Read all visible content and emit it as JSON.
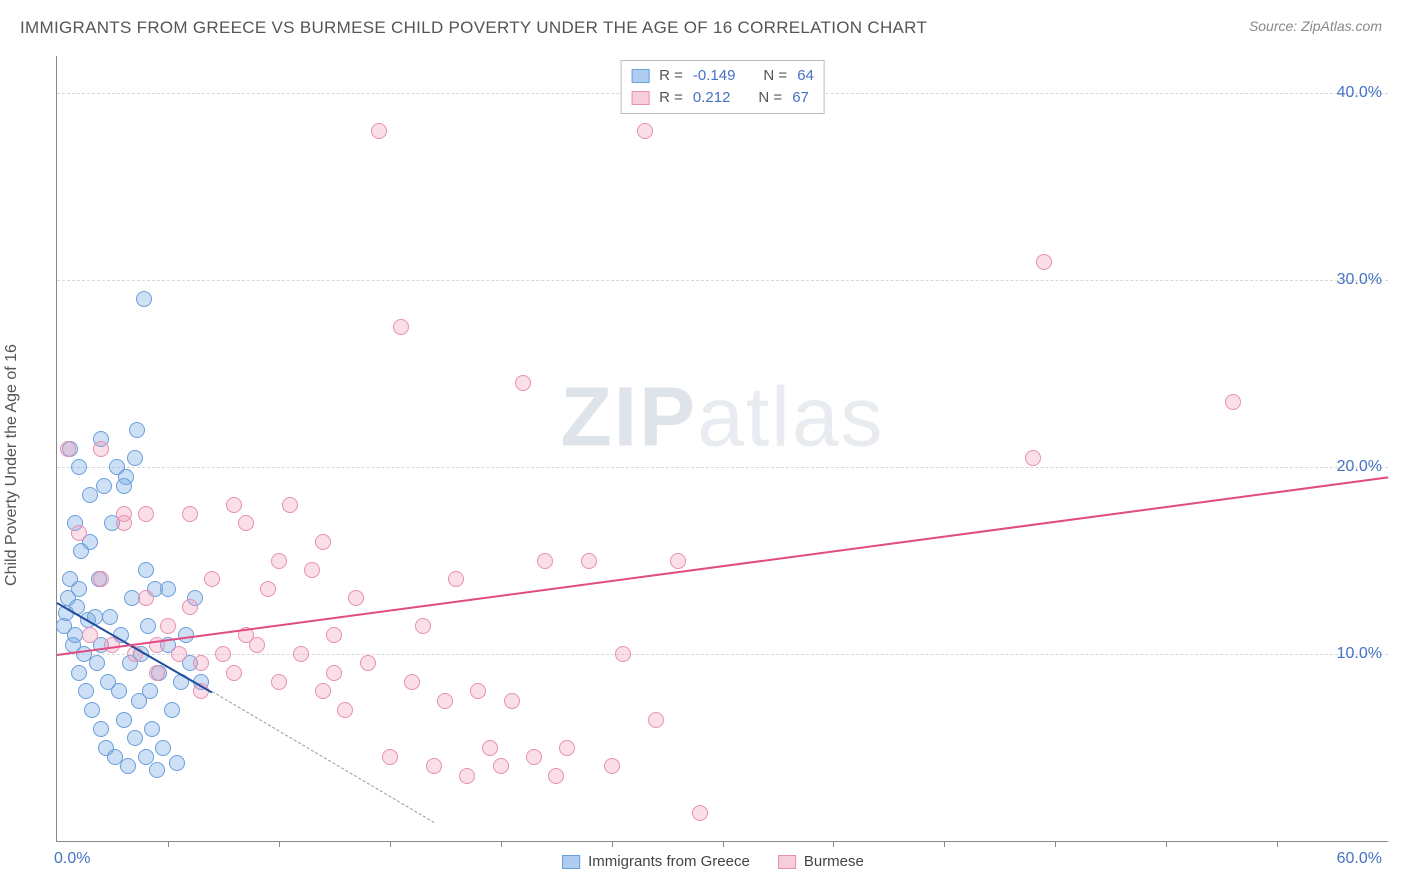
{
  "title": "IMMIGRANTS FROM GREECE VS BURMESE CHILD POVERTY UNDER THE AGE OF 16 CORRELATION CHART",
  "source": "Source: ZipAtlas.com",
  "ylabel": "Child Poverty Under the Age of 16",
  "watermark_prefix": "ZIP",
  "watermark_suffix": "atlas",
  "chart": {
    "type": "scatter",
    "xlim": [
      0,
      60
    ],
    "ylim": [
      0,
      42
    ],
    "x_tick_start": "0.0%",
    "x_tick_end": "60.0%",
    "x_minor_ticks": [
      5,
      10,
      15,
      20,
      25,
      30,
      35,
      40,
      45,
      50,
      55
    ],
    "y_gridlines": [
      10,
      20,
      30,
      40
    ],
    "y_labels": [
      "10.0%",
      "20.0%",
      "30.0%",
      "40.0%"
    ],
    "background_color": "#ffffff",
    "grid_color": "#d8d8d8",
    "axis_color": "#888888",
    "tick_label_color": "#4472c4",
    "label_fontsize": 16,
    "point_radius": 8,
    "point_stroke_width": 1.5
  },
  "series": [
    {
      "name": "Immigrants from Greece",
      "fill": "rgba(115,165,225,0.35)",
      "stroke": "#6a9edc",
      "legend_swatch_fill": "#aecdf0",
      "legend_swatch_stroke": "#6a9edc",
      "R_label": "R =",
      "R": "-0.149",
      "N_label": "N =",
      "N": "64",
      "trend": {
        "x1": 0,
        "y1": 12.8,
        "x2": 7,
        "y2": 8.0,
        "color": "#1f4e9c",
        "extend_x2": 17,
        "extend_y2": 1.0
      },
      "points": [
        [
          0.3,
          11.5
        ],
        [
          0.4,
          12.2
        ],
        [
          0.5,
          13.0
        ],
        [
          0.6,
          14.0
        ],
        [
          0.7,
          10.5
        ],
        [
          0.8,
          11.0
        ],
        [
          0.9,
          12.5
        ],
        [
          1.0,
          9.0
        ],
        [
          1.0,
          13.5
        ],
        [
          1.1,
          15.5
        ],
        [
          1.2,
          10.0
        ],
        [
          1.3,
          8.0
        ],
        [
          1.4,
          11.8
        ],
        [
          1.5,
          16.0
        ],
        [
          1.6,
          7.0
        ],
        [
          1.7,
          12.0
        ],
        [
          1.8,
          9.5
        ],
        [
          1.9,
          14.0
        ],
        [
          2.0,
          6.0
        ],
        [
          2.0,
          10.5
        ],
        [
          2.1,
          19.0
        ],
        [
          2.2,
          5.0
        ],
        [
          2.3,
          8.5
        ],
        [
          2.4,
          12.0
        ],
        [
          2.5,
          17.0
        ],
        [
          2.6,
          4.5
        ],
        [
          2.7,
          20.0
        ],
        [
          2.8,
          8.0
        ],
        [
          2.9,
          11.0
        ],
        [
          3.0,
          6.5
        ],
        [
          3.1,
          19.5
        ],
        [
          3.2,
          4.0
        ],
        [
          3.3,
          9.5
        ],
        [
          3.4,
          13.0
        ],
        [
          3.5,
          5.5
        ],
        [
          3.6,
          22.0
        ],
        [
          3.7,
          7.5
        ],
        [
          3.8,
          10.0
        ],
        [
          3.9,
          29.0
        ],
        [
          4.0,
          4.5
        ],
        [
          4.1,
          11.5
        ],
        [
          4.2,
          8.0
        ],
        [
          4.3,
          6.0
        ],
        [
          4.4,
          13.5
        ],
        [
          4.5,
          3.8
        ],
        [
          4.6,
          9.0
        ],
        [
          4.8,
          5.0
        ],
        [
          5.0,
          10.5
        ],
        [
          5.2,
          7.0
        ],
        [
          5.4,
          4.2
        ],
        [
          5.6,
          8.5
        ],
        [
          5.8,
          11.0
        ],
        [
          6.0,
          9.5
        ],
        [
          6.2,
          13.0
        ],
        [
          6.5,
          8.5
        ],
        [
          3.0,
          19.0
        ],
        [
          3.5,
          20.5
        ],
        [
          2.0,
          21.5
        ],
        [
          1.5,
          18.5
        ],
        [
          1.0,
          20.0
        ],
        [
          0.6,
          21.0
        ],
        [
          0.8,
          17.0
        ],
        [
          4.0,
          14.5
        ],
        [
          5.0,
          13.5
        ]
      ]
    },
    {
      "name": "Burmese",
      "fill": "rgba(240,150,180,0.30)",
      "stroke": "#e88fb0",
      "legend_swatch_fill": "#f7cdda",
      "legend_swatch_stroke": "#e88fb0",
      "R_label": "R =",
      "R": "0.212",
      "N_label": "N =",
      "N": "67",
      "trend": {
        "x1": 0,
        "y1": 10.0,
        "x2": 60,
        "y2": 19.5,
        "color": "#e14b82"
      },
      "points": [
        [
          0.5,
          21.0
        ],
        [
          1.0,
          16.5
        ],
        [
          1.5,
          11.0
        ],
        [
          2.0,
          14.0
        ],
        [
          2.5,
          10.5
        ],
        [
          3.0,
          17.5
        ],
        [
          3.5,
          10.0
        ],
        [
          4.0,
          13.0
        ],
        [
          4.5,
          10.5
        ],
        [
          5.0,
          11.5
        ],
        [
          5.5,
          10.0
        ],
        [
          6.0,
          12.5
        ],
        [
          6.5,
          9.5
        ],
        [
          7.0,
          14.0
        ],
        [
          7.5,
          10.0
        ],
        [
          8.0,
          18.0
        ],
        [
          8.5,
          11.0
        ],
        [
          9.0,
          10.5
        ],
        [
          9.5,
          13.5
        ],
        [
          10.0,
          8.5
        ],
        [
          10.5,
          18.0
        ],
        [
          11.0,
          10.0
        ],
        [
          11.5,
          14.5
        ],
        [
          12.0,
          8.0
        ],
        [
          12.5,
          11.0
        ],
        [
          13.0,
          7.0
        ],
        [
          13.5,
          13.0
        ],
        [
          14.0,
          9.5
        ],
        [
          14.5,
          38.0
        ],
        [
          15.0,
          4.5
        ],
        [
          15.5,
          27.5
        ],
        [
          16.0,
          8.5
        ],
        [
          16.5,
          11.5
        ],
        [
          17.0,
          4.0
        ],
        [
          17.5,
          7.5
        ],
        [
          18.0,
          14.0
        ],
        [
          18.5,
          3.5
        ],
        [
          19.0,
          8.0
        ],
        [
          19.5,
          5.0
        ],
        [
          20.0,
          4.0
        ],
        [
          20.5,
          7.5
        ],
        [
          21.0,
          24.5
        ],
        [
          21.5,
          4.5
        ],
        [
          22.0,
          15.0
        ],
        [
          22.5,
          3.5
        ],
        [
          23.0,
          5.0
        ],
        [
          24.0,
          15.0
        ],
        [
          25.0,
          4.0
        ],
        [
          25.5,
          10.0
        ],
        [
          26.5,
          38.0
        ],
        [
          27.0,
          6.5
        ],
        [
          28.0,
          15.0
        ],
        [
          29.0,
          1.5
        ],
        [
          44.0,
          20.5
        ],
        [
          44.5,
          31.0
        ],
        [
          53.0,
          23.5
        ],
        [
          2.0,
          21.0
        ],
        [
          3.0,
          17.0
        ],
        [
          4.0,
          17.5
        ],
        [
          6.0,
          17.5
        ],
        [
          8.5,
          17.0
        ],
        [
          10.0,
          15.0
        ],
        [
          12.0,
          16.0
        ],
        [
          4.5,
          9.0
        ],
        [
          6.5,
          8.0
        ],
        [
          8.0,
          9.0
        ],
        [
          12.5,
          9.0
        ]
      ]
    }
  ],
  "legend_bottom": [
    {
      "label": "Immigrants from Greece",
      "series_index": 0
    },
    {
      "label": "Burmese",
      "series_index": 1
    }
  ]
}
